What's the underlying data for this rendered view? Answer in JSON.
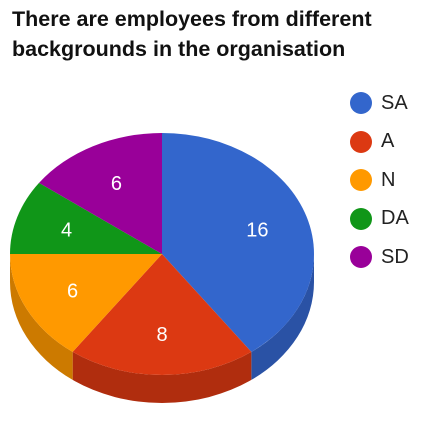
{
  "chart_data": {
    "type": "pie",
    "title_lines": [
      "There are employees from different",
      "backgrounds in the organisation"
    ],
    "categories": [
      "SA",
      "A",
      "N",
      "DA",
      "SD"
    ],
    "values": [
      16,
      8,
      6,
      4,
      6
    ],
    "colors": [
      "#3366cc",
      "#dc3912",
      "#ff9900",
      "#109618",
      "#990099"
    ],
    "side_colors": [
      "#2a52a5",
      "#b02d0e",
      "#cc7a00",
      "#0d7813",
      "#7a007a"
    ],
    "legend_position": "right"
  }
}
